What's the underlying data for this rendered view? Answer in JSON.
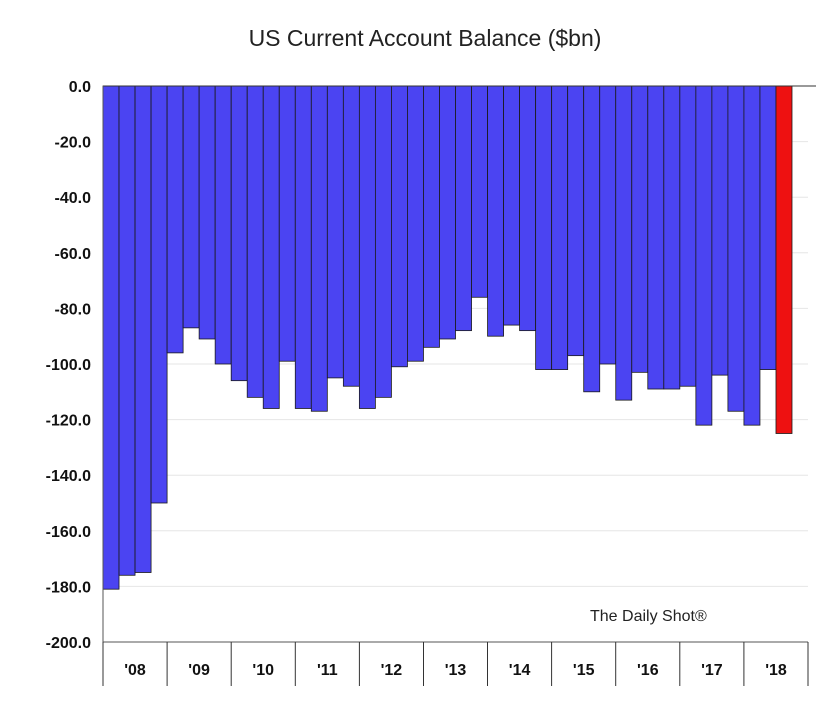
{
  "chart_data": {
    "type": "bar",
    "title": "US Current Account Balance ($bn)",
    "xlabel": "",
    "ylabel": "",
    "ylim": [
      -200,
      0
    ],
    "yticks": [
      "0.0",
      "-20.0",
      "-40.0",
      "-60.0",
      "-80.0",
      "-100.0",
      "-120.0",
      "-140.0",
      "-160.0",
      "-180.0",
      "-200.0"
    ],
    "year_labels": [
      "'08",
      "'09",
      "'10",
      "'11",
      "'12",
      "'13",
      "'14",
      "'15",
      "'16",
      "'17",
      "'18"
    ],
    "grid": true,
    "watermark": "The Daily Shot®",
    "colors": {
      "bar": "#4b44f2",
      "highlight": "#ee1111",
      "bar_edge": "#1a1a1a",
      "grid": "#e6e6e6"
    },
    "values": [
      -181,
      -176,
      -175,
      -150,
      -96,
      -87,
      -91,
      -100,
      -106,
      -112,
      -116,
      -99,
      -116,
      -117,
      -105,
      -108,
      -116,
      -112,
      -101,
      -99,
      -94,
      -91,
      -88,
      -76,
      -90,
      -86,
      -88,
      -102,
      -102,
      -97,
      -110,
      -100,
      -113,
      -103,
      -109,
      -109,
      -108,
      -122,
      -104,
      -117,
      -122,
      -102,
      -125
    ],
    "highlight_index": 42
  }
}
